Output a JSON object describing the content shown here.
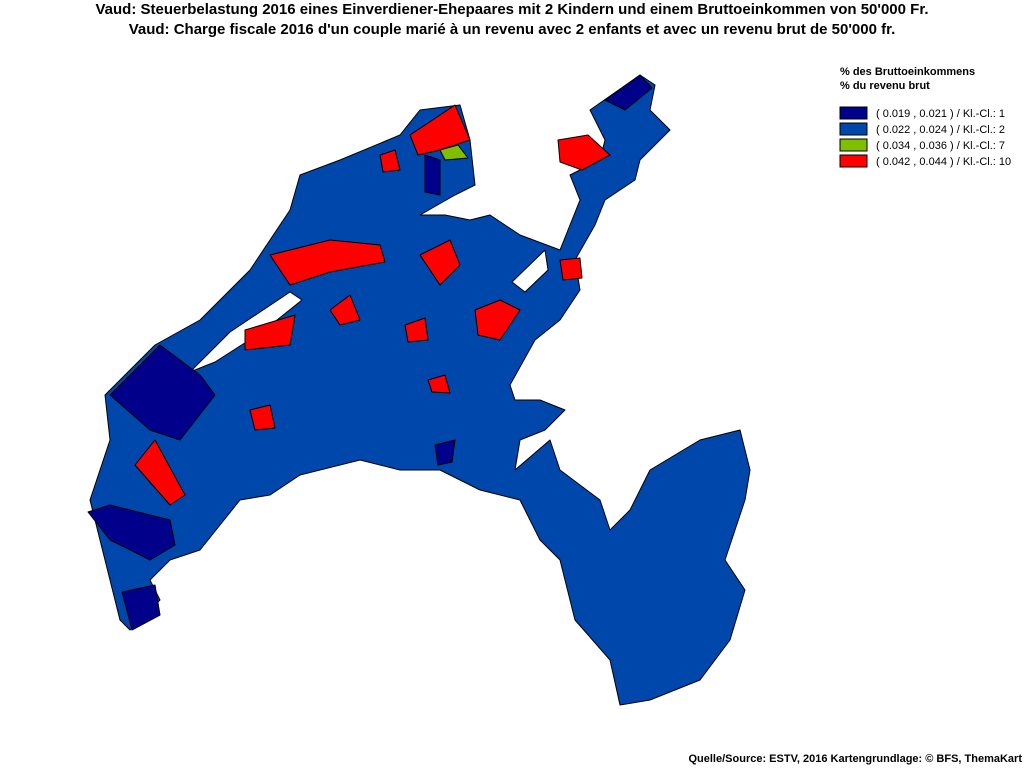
{
  "header": {
    "title_de": "Vaud: Steuerbelastung 2016 eines Einverdiener-Ehepaares mit 2 Kindern und einem Bruttoeinkommen von 50'000 Fr.",
    "title_fr": "Vaud: Charge fiscale 2016 d'un couple marié à un revenu avec 2 enfants et avec un revenu brut de 50'000 fr."
  },
  "legend": {
    "title_de": "% des Bruttoeinkommens",
    "title_fr": "% du revenu brut",
    "items": [
      {
        "label": "( 0.019 , 0.021 ) / Kl.-Cl.: 1",
        "color": "#00008b"
      },
      {
        "label": "( 0.022 , 0.024 ) / Kl.-Cl.: 2",
        "color": "#0047ab"
      },
      {
        "label": "( 0.034 , 0.036 ) / Kl.-Cl.: 7",
        "color": "#7fbf00"
      },
      {
        "label": "( 0.042 , 0.044 ) / Kl.-Cl.: 10",
        "color": "#ff0000"
      }
    ]
  },
  "source": "Quelle/Source: ESTV, 2016 Kartengrundlage: © BFS, ThemaKart"
}
